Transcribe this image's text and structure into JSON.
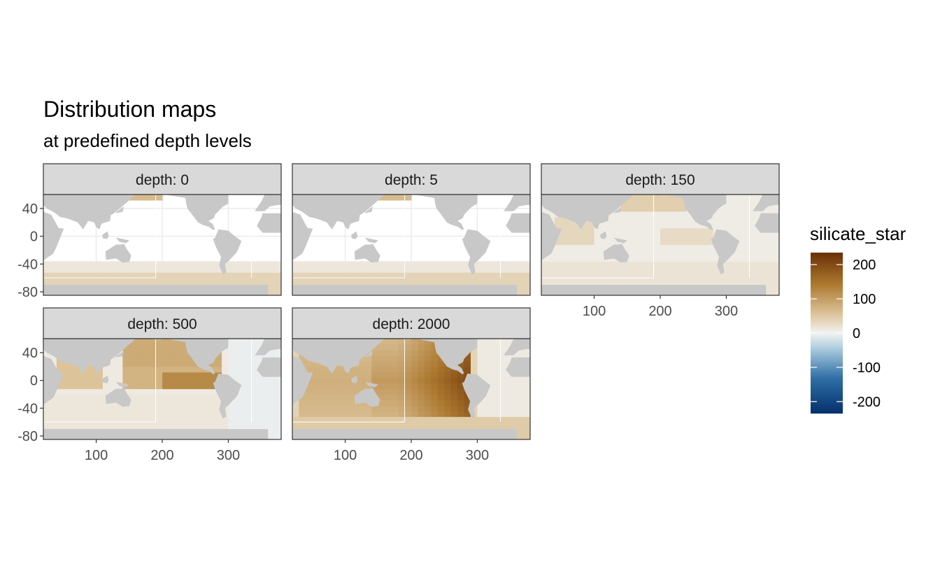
{
  "chart_data": {
    "type": "heatmap",
    "title": "Distribution maps",
    "subtitle": "at predefined depth levels",
    "xlabel": "",
    "ylabel": "",
    "xlim": [
      20,
      380
    ],
    "ylim": [
      -85,
      60
    ],
    "x_ticks": [
      "100",
      "200",
      "300"
    ],
    "y_ticks": [
      "40",
      "0",
      "-40",
      "-80"
    ],
    "x_tick_values": [
      100,
      200,
      300
    ],
    "y_tick_values": [
      40,
      0,
      -40,
      -80
    ],
    "panels": [
      {
        "label": "depth: 0",
        "depth": 0
      },
      {
        "label": "depth: 5",
        "depth": 5
      },
      {
        "label": "depth: 150",
        "depth": 150
      },
      {
        "label": "depth: 500",
        "depth": 500
      },
      {
        "label": "depth: 2000",
        "depth": 2000
      }
    ],
    "legend": {
      "title": "silicate_star",
      "labels": [
        "200",
        "100",
        "0",
        "-100",
        "-200"
      ],
      "values": [
        200,
        100,
        0,
        -100,
        -200
      ],
      "limits": [
        -235,
        235
      ],
      "position": "right"
    },
    "colors": {
      "panel_strip": "#d9d9d9",
      "land": "#c8c8c8",
      "low": "#05306b",
      "mid": "#f2f2f0",
      "high": "#6a2f05"
    },
    "grid": true
  }
}
